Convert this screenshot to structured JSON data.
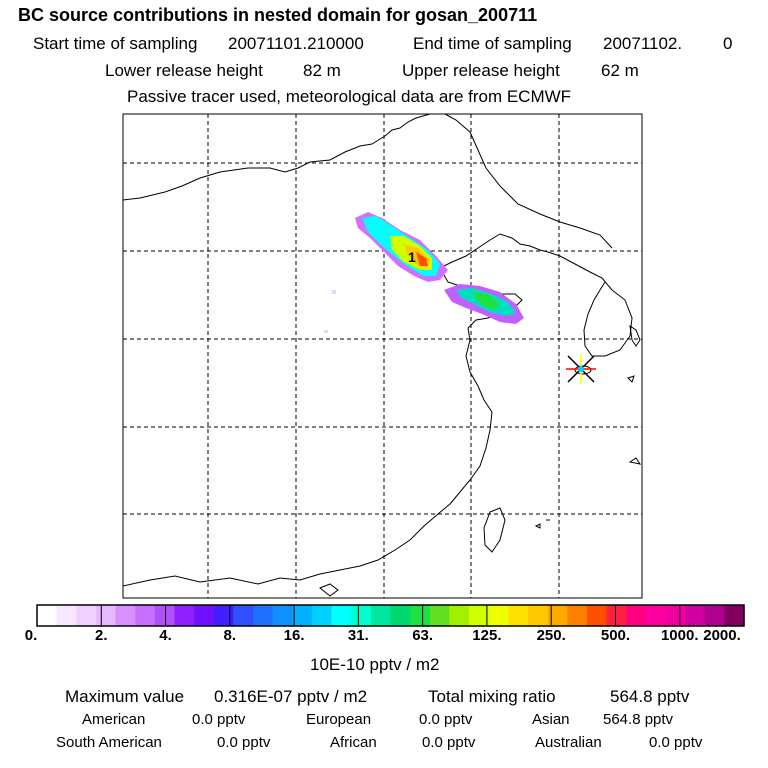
{
  "title": "BC  source contributions in nested domain for gosan_200711",
  "header": {
    "start_label": "Start time of sampling",
    "start_value": "20071101.210000",
    "end_label": "End time of sampling",
    "end_value": "20071102.",
    "end_suffix": "0",
    "lower_label": "Lower release height",
    "lower_value": "82 m",
    "upper_label": "Upper release height",
    "upper_value": "62 m",
    "note": "Passive tracer used, meteorological data are from ECMWF"
  },
  "map": {
    "marker_label": "1",
    "receptor": "gosan"
  },
  "colorbar": {
    "ticks": [
      "0.",
      "2.",
      "4.",
      "8.",
      "16.",
      "31.",
      "63.",
      "125.",
      "250.",
      "500.",
      "1000.",
      "2000."
    ],
    "colors": [
      "#ffffff",
      "#f8e8ff",
      "#f0d0ff",
      "#e8b8ff",
      "#d890ff",
      "#c870ff",
      "#b050ff",
      "#9020ff",
      "#7010ff",
      "#4020ff",
      "#3050ff",
      "#2070ff",
      "#1090ff",
      "#00b0ff",
      "#00d0ff",
      "#00ffff",
      "#00ffd0",
      "#00e8a0",
      "#00d870",
      "#20e040",
      "#60e020",
      "#a0f000",
      "#d0ff00",
      "#f0ff00",
      "#ffe000",
      "#ffc800",
      "#ffa800",
      "#ff8000",
      "#ff5000",
      "#ff2040",
      "#ff0080",
      "#ff00a0",
      "#f000a0",
      "#d000a0",
      "#b00090",
      "#800060"
    ],
    "unit": "10E-10 pptv / m2"
  },
  "footer": {
    "max_label": "Maximum value",
    "max_value": "0.316E-07 pptv / m2",
    "total_label": "Total mixing ratio",
    "total_value": "564.8 pptv",
    "regions": [
      {
        "name": "American",
        "value": "0.0 pptv"
      },
      {
        "name": "European",
        "value": "0.0 pptv"
      },
      {
        "name": "Asian",
        "value": "564.8 pptv"
      },
      {
        "name": "South American",
        "value": "0.0 pptv"
      },
      {
        "name": "African",
        "value": "0.0 pptv"
      },
      {
        "name": "Australian",
        "value": "0.0 pptv"
      }
    ]
  }
}
